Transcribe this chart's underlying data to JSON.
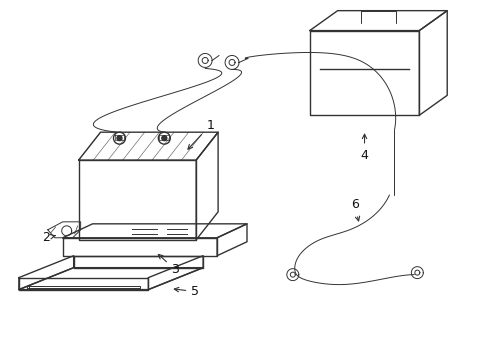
{
  "bg_color": "#ffffff",
  "line_color": "#333333",
  "line_width": 1.0,
  "thin_lw": 0.7,
  "label_fontsize": 9,
  "fig_width": 4.89,
  "fig_height": 3.6,
  "dpi": 100
}
